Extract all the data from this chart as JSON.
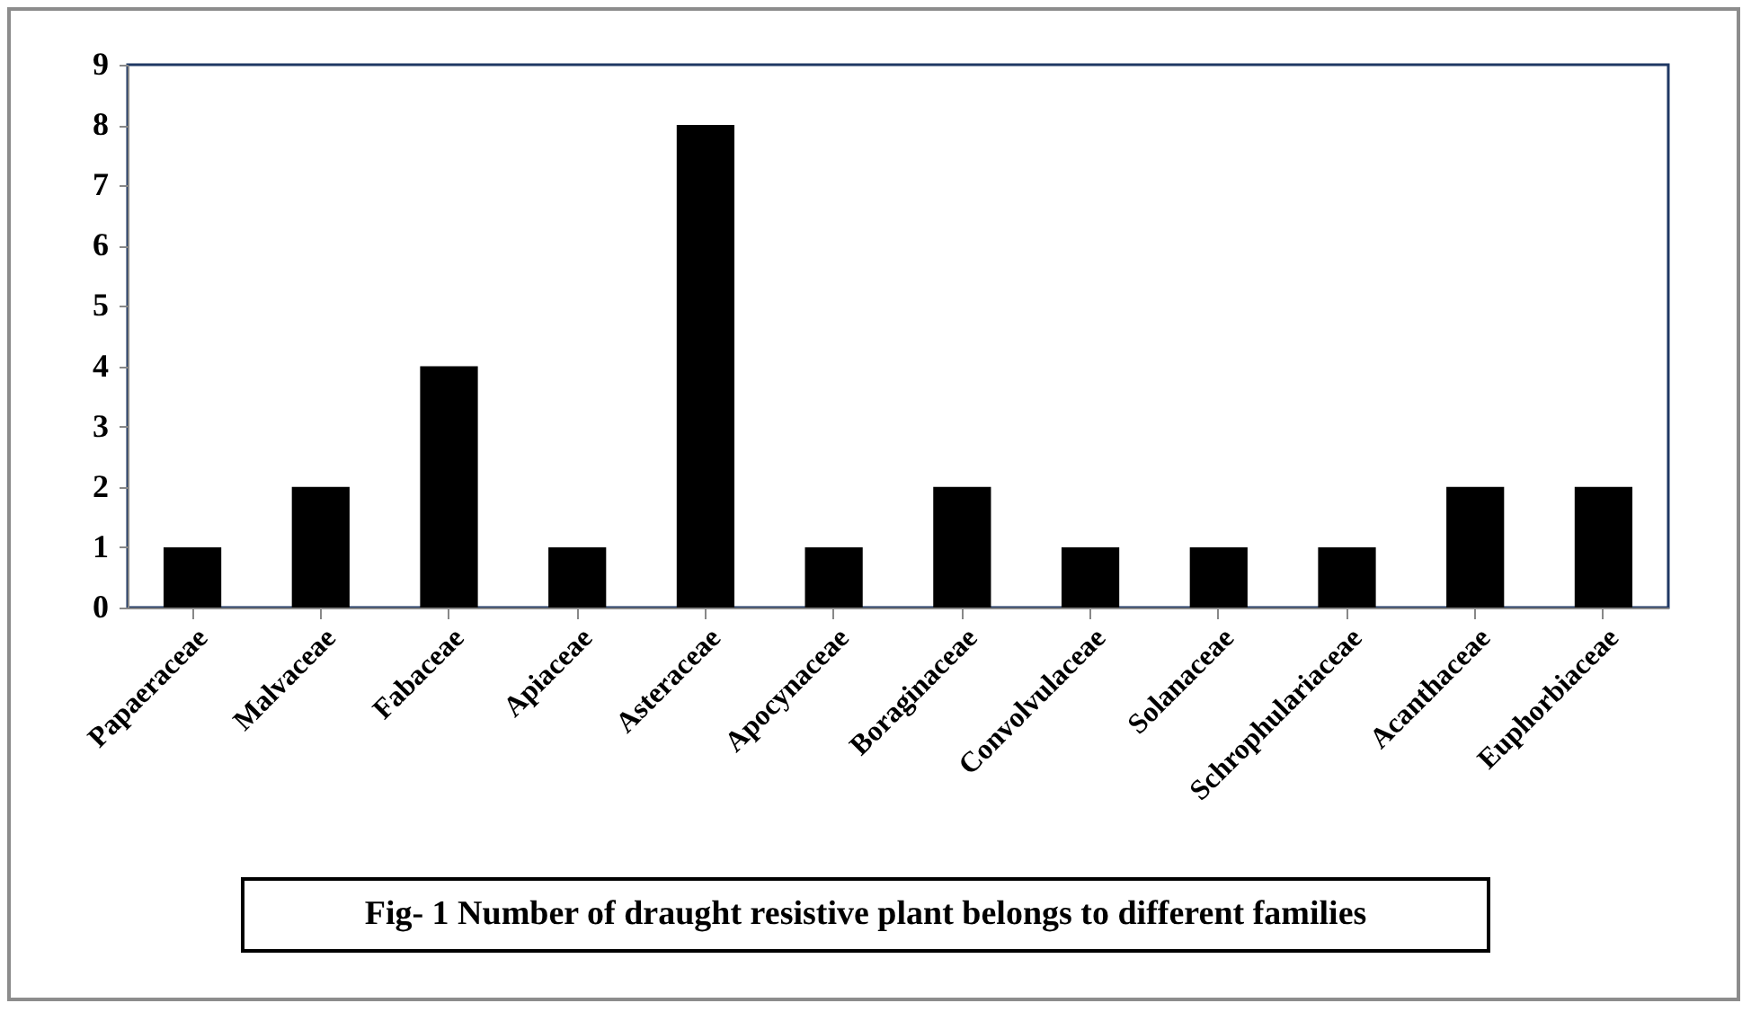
{
  "chart_data": {
    "type": "bar",
    "title": "Fig- 1 Number of draught resistive plant belongs to different families",
    "categories": [
      "Papaeraceae",
      "Malvaceae",
      "Fabaceae",
      "Apiaceae",
      "Asteraceae",
      "Apocynaceae",
      "Boraginaceae",
      "Convolvulaceae",
      "Solanaceae",
      "Schrophulariaceae",
      "Acanthaceae",
      "Euphorbiaceae"
    ],
    "values": [
      1,
      2,
      4,
      1,
      8,
      1,
      2,
      1,
      1,
      1,
      2,
      2
    ],
    "color": "#000000",
    "ylim": [
      0,
      9
    ],
    "yticks": [
      0,
      1,
      2,
      3,
      4,
      5,
      6,
      7,
      8,
      9
    ],
    "grid": false
  }
}
